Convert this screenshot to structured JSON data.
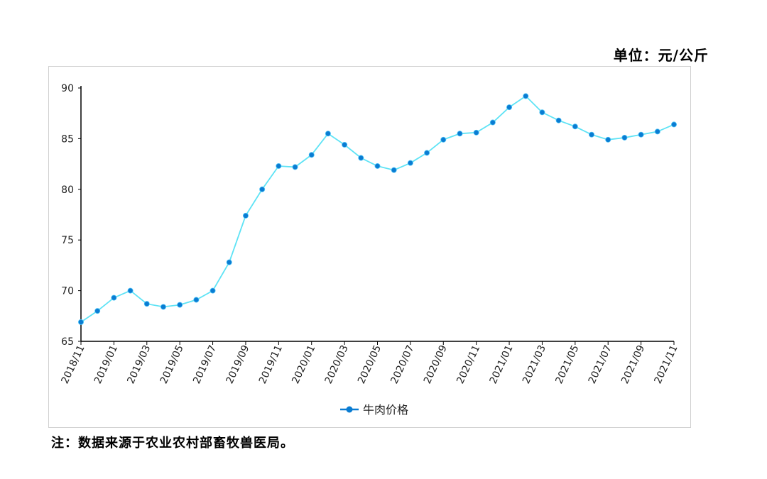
{
  "unit_label": "单位：元/公斤",
  "note": "注：数据来源于农业农村部畜牧兽医局。",
  "colors": {
    "line": "#5ee3f5",
    "marker": "#0a7cd2",
    "axis": "#000000"
  },
  "chart_data": {
    "type": "line",
    "title": "",
    "xlabel": "",
    "ylabel": "",
    "x": [
      "2018/11",
      "2018/12",
      "2019/01",
      "2019/02",
      "2019/03",
      "2019/04",
      "2019/05",
      "2019/06",
      "2019/07",
      "2019/08",
      "2019/09",
      "2019/10",
      "2019/11",
      "2019/12",
      "2020/01",
      "2020/02",
      "2020/03",
      "2020/04",
      "2020/05",
      "2020/06",
      "2020/07",
      "2020/08",
      "2020/09",
      "2020/10",
      "2020/11",
      "2020/12",
      "2021/01",
      "2021/02",
      "2021/03",
      "2021/04",
      "2021/05",
      "2021/06",
      "2021/07",
      "2021/08",
      "2021/09",
      "2021/10",
      "2021/11"
    ],
    "x_tick_labels": [
      "2018/11",
      "2019/01",
      "2019/03",
      "2019/05",
      "2019/07",
      "2019/09",
      "2019/11",
      "2020/01",
      "2020/03",
      "2020/05",
      "2020/07",
      "2020/09",
      "2020/11",
      "2021/01",
      "2021/03",
      "2021/05",
      "2021/07",
      "2021/09",
      "2021/11"
    ],
    "ylim": [
      65,
      90
    ],
    "y_ticks": [
      65,
      70,
      75,
      80,
      85,
      90
    ],
    "grid": false,
    "legend_position": "bottom",
    "series": [
      {
        "name": "牛肉价格",
        "values": [
          66.9,
          68.0,
          69.3,
          70.0,
          68.7,
          68.4,
          68.6,
          69.1,
          70.0,
          72.8,
          77.4,
          80.0,
          82.3,
          82.2,
          83.4,
          85.5,
          84.4,
          83.1,
          82.3,
          81.9,
          82.6,
          83.6,
          84.9,
          85.5,
          85.6,
          86.6,
          88.1,
          89.2,
          87.6,
          86.8,
          86.2,
          85.4,
          84.9,
          85.1,
          85.4,
          85.7,
          86.4
        ]
      }
    ]
  }
}
